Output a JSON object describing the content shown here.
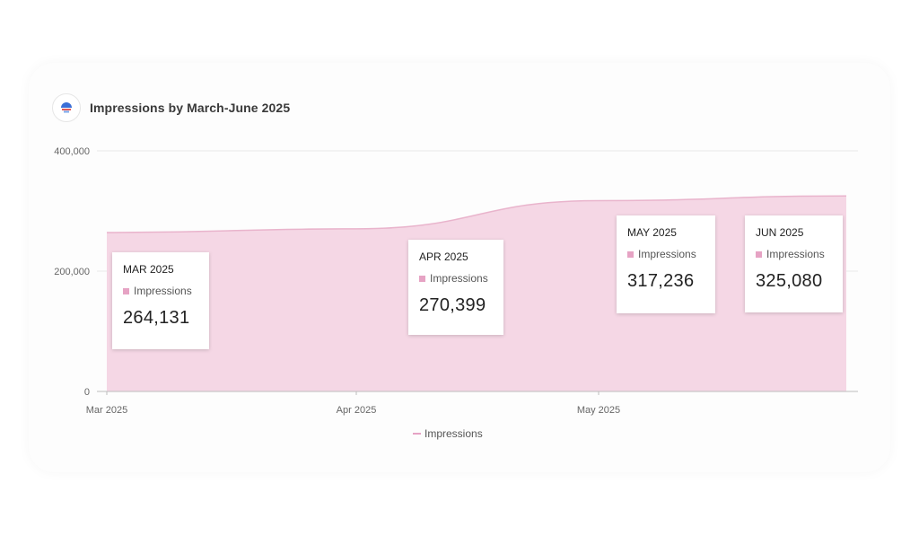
{
  "chart_title": "Impressions by March-June 2025",
  "colors": {
    "area_fill": "#f5d7e5",
    "area_stroke": "#e9b4cc",
    "swatch": "#e6a3c4",
    "grid": "#e9e9e9"
  },
  "chart_data": {
    "type": "area",
    "title": "Impressions by March-June 2025",
    "x": [
      "Mar 2025",
      "Apr 2025",
      "May 2025",
      "Jun 2025"
    ],
    "x_tick_labels": [
      "Mar 2025",
      "Apr 2025",
      "May 2025"
    ],
    "y_tick_labels": [
      "0",
      "200,000",
      "400,000"
    ],
    "ylim": [
      0,
      400000
    ],
    "grid": true,
    "legend": "bottom-center",
    "series": [
      {
        "name": "Impressions",
        "values": [
          264131,
          270399,
          317236,
          325080
        ]
      }
    ],
    "tooltips": [
      {
        "month": "MAR 2025",
        "series": "Impressions",
        "value": "264,131"
      },
      {
        "month": "APR 2025",
        "series": "Impressions",
        "value": "270,399"
      },
      {
        "month": "MAY 2025",
        "series": "Impressions",
        "value": "317,236"
      },
      {
        "month": "JUN 2025",
        "series": "Impressions",
        "value": "325,080"
      }
    ]
  }
}
